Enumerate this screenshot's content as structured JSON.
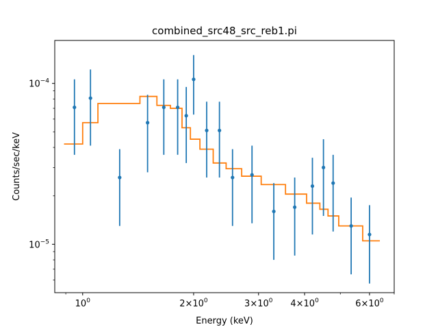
{
  "chart_data": {
    "type": "scatter",
    "title": "combined_src48_src_reb1.pi",
    "xlabel": "Energy (keV)",
    "ylabel": "Counts/sec/keV",
    "xscale": "log",
    "yscale": "log",
    "xlim": [
      0.84,
      7.0
    ],
    "ylim": [
      5e-06,
      0.000185
    ],
    "grid": false,
    "x_ticks": [
      {
        "value": 1,
        "base": "10",
        "exp": "0"
      },
      {
        "value": 2,
        "base": "2×10",
        "exp": "0"
      },
      {
        "value": 3,
        "base": "3×10",
        "exp": "0"
      },
      {
        "value": 4,
        "base": "4×10",
        "exp": "0"
      },
      {
        "value": 6,
        "base": "6×10",
        "exp": "0"
      }
    ],
    "y_ticks": [
      {
        "value": 0.0001,
        "base": "10",
        "exp": "−4"
      },
      {
        "value": 1e-05,
        "base": "10",
        "exp": "−5"
      }
    ],
    "data_series": {
      "color": "#1f77b4",
      "points": [
        {
          "x": 0.95,
          "y": 7.1e-05,
          "ylo": 3.6e-05,
          "yhi": 0.000106
        },
        {
          "x": 1.05,
          "y": 8.1e-05,
          "ylo": 4.1e-05,
          "yhi": 0.000122
        },
        {
          "x": 1.26,
          "y": 2.6e-05,
          "ylo": 1.3e-05,
          "yhi": 3.9e-05
        },
        {
          "x": 1.5,
          "y": 5.7e-05,
          "ylo": 2.8e-05,
          "yhi": 8.5e-05
        },
        {
          "x": 1.66,
          "y": 7.1e-05,
          "ylo": 3.6e-05,
          "yhi": 0.000106
        },
        {
          "x": 1.81,
          "y": 7.1e-05,
          "ylo": 3.6e-05,
          "yhi": 0.000106
        },
        {
          "x": 1.91,
          "y": 6.3e-05,
          "ylo": 3.2e-05,
          "yhi": 9.5e-05
        },
        {
          "x": 2.0,
          "y": 0.000106,
          "ylo": 6.4e-05,
          "yhi": 0.00015
        },
        {
          "x": 2.17,
          "y": 5.1e-05,
          "ylo": 2.6e-05,
          "yhi": 7.7e-05
        },
        {
          "x": 2.35,
          "y": 5.1e-05,
          "ylo": 2.6e-05,
          "yhi": 7.7e-05
        },
        {
          "x": 2.55,
          "y": 2.6e-05,
          "ylo": 1.3e-05,
          "yhi": 3.9e-05
        },
        {
          "x": 2.88,
          "y": 2.7e-05,
          "ylo": 1.35e-05,
          "yhi": 4.1e-05
        },
        {
          "x": 3.3,
          "y": 1.6e-05,
          "ylo": 8e-06,
          "yhi": 2.4e-05
        },
        {
          "x": 3.76,
          "y": 1.7e-05,
          "ylo": 8.5e-06,
          "yhi": 2.6e-05
        },
        {
          "x": 4.2,
          "y": 2.3e-05,
          "ylo": 1.15e-05,
          "yhi": 3.45e-05
        },
        {
          "x": 4.5,
          "y": 3e-05,
          "ylo": 1.5e-05,
          "yhi": 4.5e-05
        },
        {
          "x": 4.78,
          "y": 2.4e-05,
          "ylo": 1.2e-05,
          "yhi": 3.6e-05
        },
        {
          "x": 5.35,
          "y": 1.3e-05,
          "ylo": 6.5e-06,
          "yhi": 1.95e-05
        },
        {
          "x": 6.0,
          "y": 1.15e-05,
          "ylo": 5.7e-06,
          "yhi": 1.75e-05
        }
      ]
    },
    "model_series": {
      "color": "#ff7f0e",
      "steps": [
        {
          "x0": 0.89,
          "x1": 1.0,
          "y": 4.2e-05
        },
        {
          "x0": 1.0,
          "x1": 1.1,
          "y": 5.7e-05
        },
        {
          "x0": 1.1,
          "x1": 1.43,
          "y": 7.5e-05
        },
        {
          "x0": 1.43,
          "x1": 1.59,
          "y": 8.3e-05
        },
        {
          "x0": 1.59,
          "x1": 1.73,
          "y": 7.3e-05
        },
        {
          "x0": 1.73,
          "x1": 1.86,
          "y": 7e-05
        },
        {
          "x0": 1.86,
          "x1": 1.96,
          "y": 5.3e-05
        },
        {
          "x0": 1.96,
          "x1": 2.08,
          "y": 4.5e-05
        },
        {
          "x0": 2.08,
          "x1": 2.26,
          "y": 3.9e-05
        },
        {
          "x0": 2.26,
          "x1": 2.45,
          "y": 3.2e-05
        },
        {
          "x0": 2.45,
          "x1": 2.7,
          "y": 2.95e-05
        },
        {
          "x0": 2.7,
          "x1": 3.05,
          "y": 2.65e-05
        },
        {
          "x0": 3.05,
          "x1": 3.55,
          "y": 2.35e-05
        },
        {
          "x0": 3.55,
          "x1": 4.05,
          "y": 2.05e-05
        },
        {
          "x0": 4.05,
          "x1": 4.4,
          "y": 1.8e-05
        },
        {
          "x0": 4.4,
          "x1": 4.63,
          "y": 1.65e-05
        },
        {
          "x0": 4.63,
          "x1": 4.95,
          "y": 1.5e-05
        },
        {
          "x0": 4.95,
          "x1": 5.75,
          "y": 1.3e-05
        },
        {
          "x0": 5.75,
          "x1": 6.4,
          "y": 1.05e-05
        }
      ]
    }
  }
}
